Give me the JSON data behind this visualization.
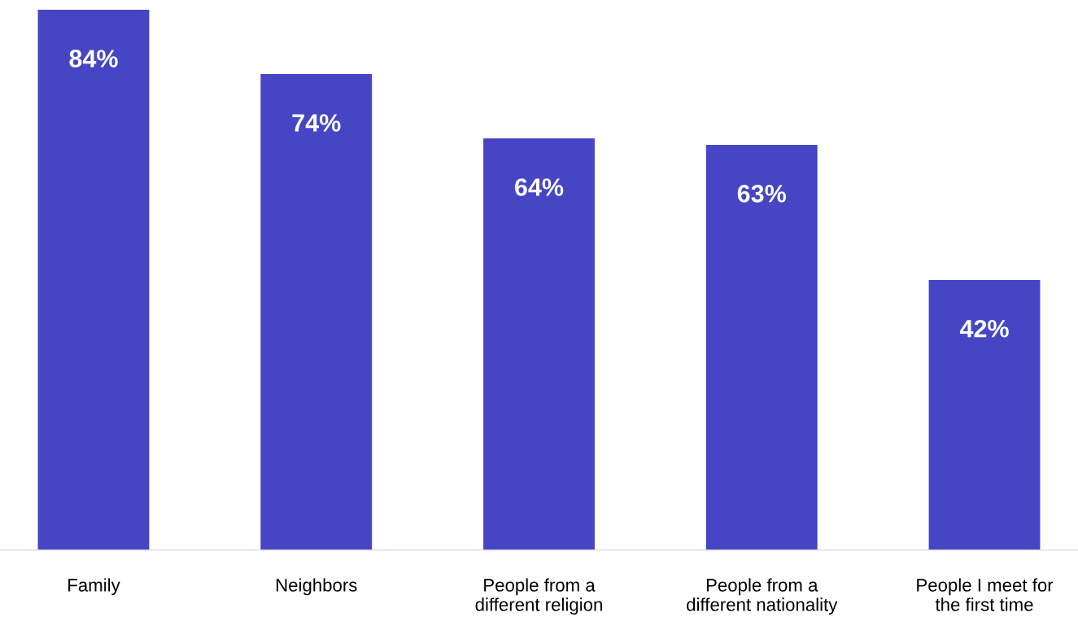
{
  "chart_data": {
    "type": "bar",
    "categories": [
      "Family",
      "Neighbors",
      "People from a\ndifferent religion",
      "People from a\ndifferent nationality",
      "People I meet for\nthe first time"
    ],
    "values": [
      84,
      74,
      64,
      63,
      42
    ],
    "value_labels": [
      "84%",
      "74%",
      "64%",
      "63%",
      "42%"
    ],
    "color": "#4646c4",
    "grid": false,
    "legend": false
  }
}
